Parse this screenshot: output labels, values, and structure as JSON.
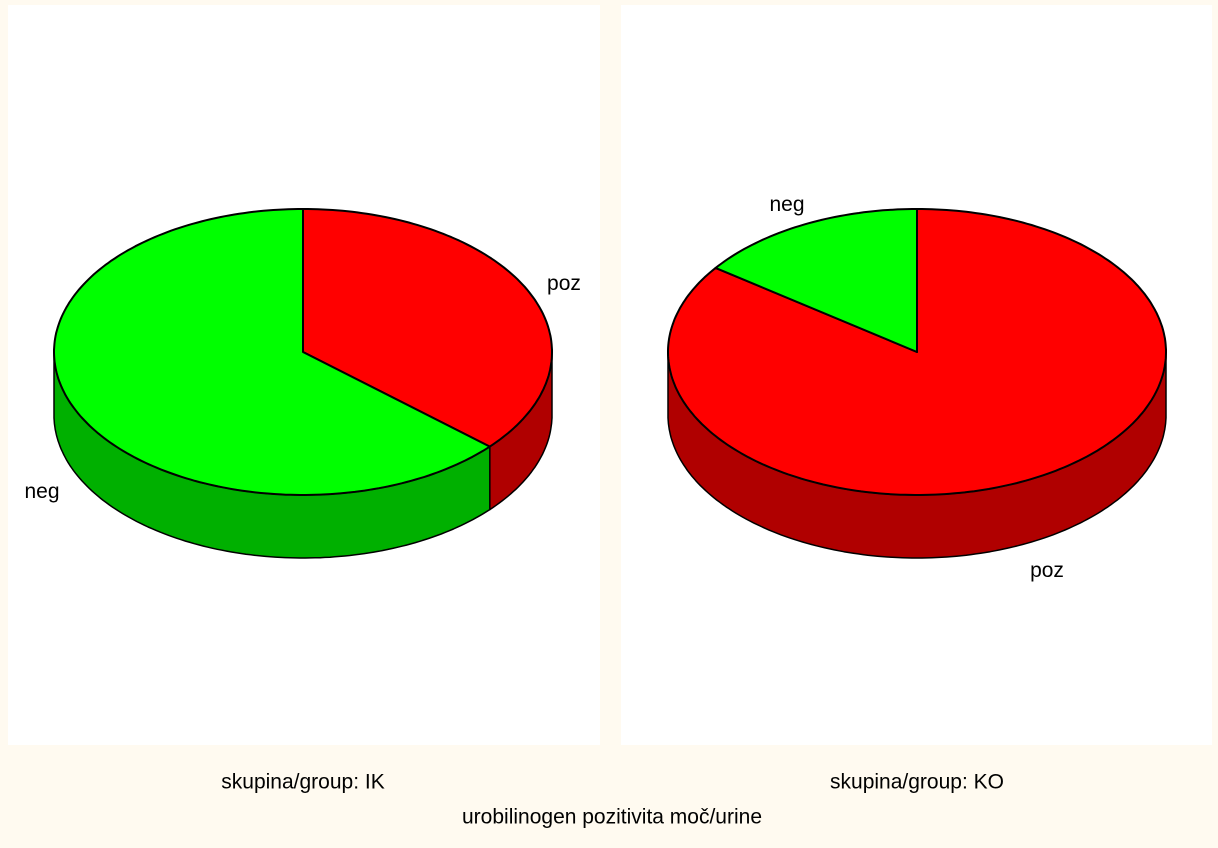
{
  "chart_data": [
    {
      "type": "pie",
      "title": "skupina/group: IK",
      "categories": [
        "poz",
        "neg"
      ],
      "values": [
        36.5,
        63.5
      ],
      "colors": [
        "#ff0000",
        "#00ff00"
      ],
      "side_colors": [
        "#b00000",
        "#00b000"
      ]
    },
    {
      "type": "pie",
      "title": "skupina/group: KO",
      "categories": [
        "poz",
        "neg"
      ],
      "values": [
        85,
        15
      ],
      "colors": [
        "#ff0000",
        "#00ff00"
      ],
      "side_colors": [
        "#b00000",
        "#00b000"
      ]
    }
  ],
  "caption": "urobilinogen pozitivita moč/urine"
}
